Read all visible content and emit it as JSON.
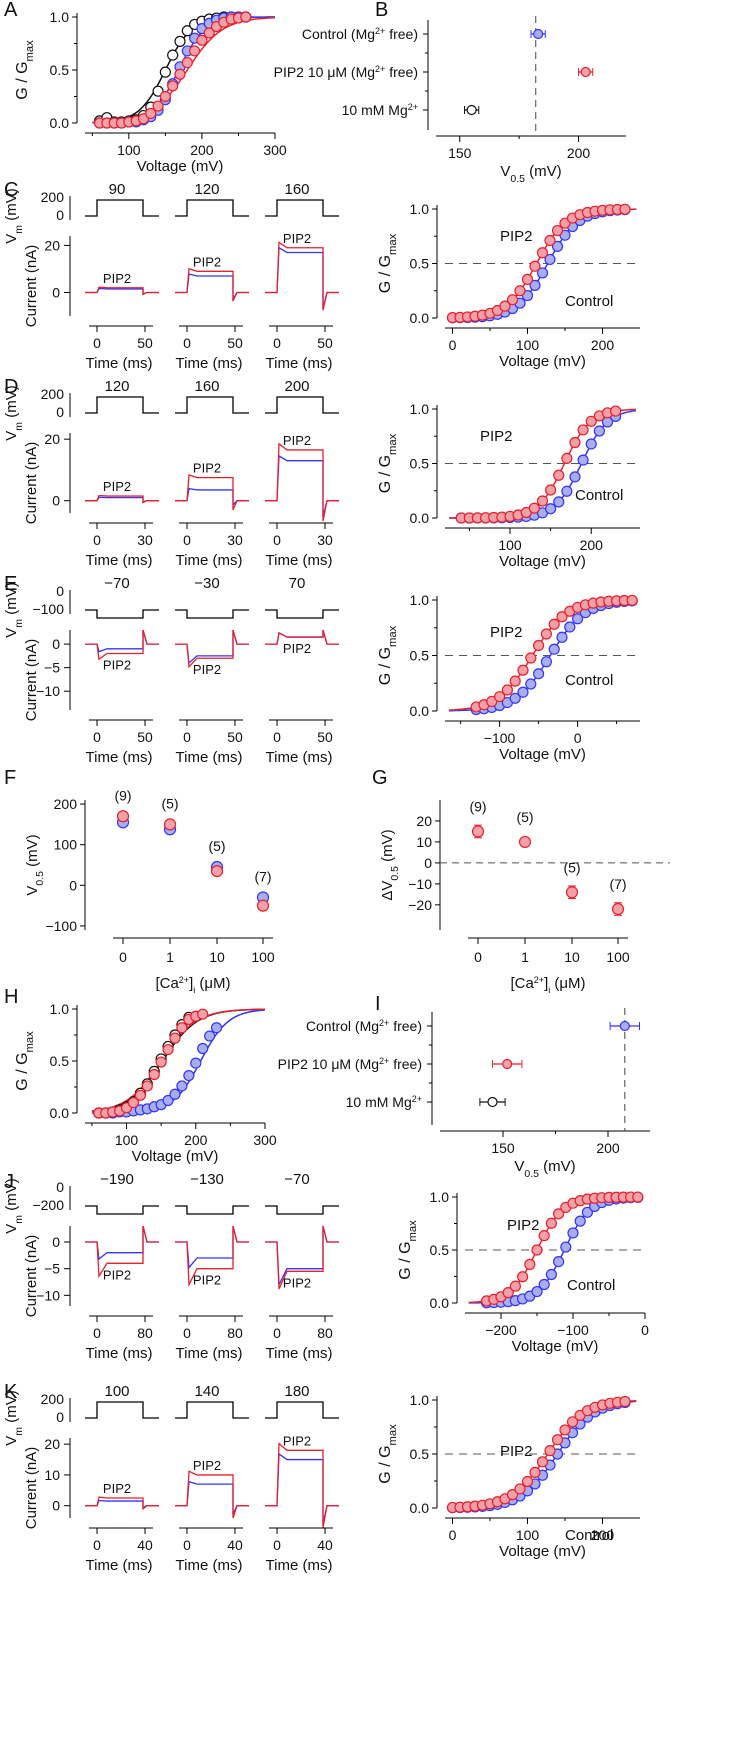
{
  "colors": {
    "control": "#3333ff",
    "pip2": "#e8202a",
    "mg": "#111111",
    "pip2_fill": "#f4a0a8",
    "control_fill": "#a9aef0"
  },
  "panel_letters": [
    "A",
    "B",
    "C",
    "D",
    "E",
    "F",
    "G",
    "H",
    "I",
    "J",
    "K"
  ],
  "common": {
    "g_label": "G / G",
    "g_sub": "max",
    "voltage_label": "Voltage (mV)",
    "time_label": "Time (ms)",
    "vm_label": "V",
    "vm_sub": "m",
    "vm_unit": " (mV)",
    "current_label": "Current (nA)",
    "pip2_label": "PIP2",
    "control_label": "Control",
    "v05_label": "V",
    "v05_sub": "0.5",
    "v05_unit": " (mV)"
  },
  "chart_data": [
    {
      "panel": "A",
      "type": "scatter",
      "xlabel": "Voltage (mV)",
      "ylabel": "G / Gmax",
      "xlim": [
        40,
        300
      ],
      "ylim": [
        0,
        1
      ],
      "xticks": [
        "100",
        "200",
        "300"
      ],
      "yticks": [
        "0.0",
        "0.5",
        "1.0"
      ],
      "series": [
        {
          "role": "mg",
          "x": [
            60,
            70,
            80,
            90,
            100,
            110,
            120,
            130,
            140,
            150,
            160,
            170,
            180,
            190,
            200,
            210,
            220,
            230,
            240,
            250,
            260
          ],
          "y": [
            0.02,
            0.05,
            0.01,
            0.01,
            0.02,
            0.03,
            0.07,
            0.15,
            0.3,
            0.48,
            0.64,
            0.77,
            0.87,
            0.93,
            0.96,
            0.98,
            0.99,
            1.0,
            1.0,
            1.0,
            1.0
          ]
        },
        {
          "role": "control",
          "x": [
            60,
            70,
            80,
            90,
            100,
            110,
            120,
            130,
            140,
            150,
            160,
            170,
            180,
            190,
            200,
            210,
            220,
            230,
            240,
            250,
            260
          ],
          "y": [
            0.0,
            0.0,
            0.0,
            0.0,
            0.01,
            0.01,
            0.03,
            0.06,
            0.12,
            0.22,
            0.37,
            0.53,
            0.68,
            0.8,
            0.89,
            0.94,
            0.97,
            0.99,
            1.0,
            1.0,
            1.0
          ]
        },
        {
          "role": "pip2",
          "x": [
            60,
            70,
            80,
            90,
            100,
            110,
            120,
            130,
            140,
            150,
            160,
            170,
            180,
            190,
            200,
            210,
            220,
            230,
            240,
            250,
            260
          ],
          "y": [
            0.0,
            0.0,
            0.0,
            0.0,
            0.01,
            0.02,
            0.04,
            0.09,
            0.16,
            0.25,
            0.35,
            0.46,
            0.57,
            0.68,
            0.78,
            0.85,
            0.91,
            0.95,
            0.98,
            0.99,
            1.0
          ]
        }
      ]
    },
    {
      "panel": "B",
      "type": "scatter",
      "xlabel": "V0.5 (mV)",
      "xlim": [
        140,
        220
      ],
      "xticks": [
        "150",
        "200"
      ],
      "categories": [
        "Control (Mg2+ free)",
        "PIP2 10 μM (Mg2+ free)",
        "10 mM Mg2+"
      ],
      "values": [
        183,
        203,
        155
      ],
      "errors": [
        3,
        3,
        3
      ],
      "dashed_x": 182
    },
    {
      "panel": "C",
      "type": "line",
      "steps": [
        "90",
        "120",
        "160"
      ],
      "time_ticks": [
        "0",
        "50"
      ],
      "vm_ticks": [
        "200",
        "0"
      ],
      "current_ticks": [
        "20",
        "0"
      ],
      "ylim": [
        -10,
        24
      ],
      "steady_control": [
        1.5,
        7,
        17
      ],
      "steady_pip2": [
        2,
        9,
        19
      ]
    },
    {
      "panel": "C",
      "type": "scatter",
      "xlabel": "Voltage (mV)",
      "ylabel": "G / Gmax",
      "xlim": [
        -10,
        250
      ],
      "ylim": [
        0,
        1
      ],
      "xticks": [
        "0",
        "100",
        "200"
      ],
      "yticks": [
        "0.0",
        "0.5",
        "1.0"
      ],
      "v50_pip2": 112,
      "v50_control": 127,
      "slope": 20,
      "x_points": [
        0,
        10,
        20,
        30,
        40,
        50,
        60,
        70,
        80,
        90,
        100,
        110,
        120,
        130,
        140,
        150,
        160,
        170,
        180,
        190,
        200,
        210,
        220,
        230
      ],
      "dashed_y": 0.5
    },
    {
      "panel": "D",
      "type": "line",
      "steps": [
        "120",
        "160",
        "200"
      ],
      "time_ticks": [
        "0",
        "30"
      ],
      "vm_ticks": [
        "200",
        "0"
      ],
      "current_ticks": [
        "20",
        "0"
      ],
      "ylim": [
        -4,
        22
      ],
      "steady_control": [
        1,
        3.5,
        13
      ],
      "steady_pip2": [
        1.5,
        7.5,
        16.5
      ]
    },
    {
      "panel": "D",
      "type": "scatter",
      "xlabel": "Voltage (mV)",
      "ylabel": "G / Gmax",
      "xlim": [
        20,
        260
      ],
      "ylim": [
        0,
        1
      ],
      "xticks": [
        "100",
        "200"
      ],
      "yticks": [
        "0.0",
        "0.5",
        "1.0"
      ],
      "v50_pip2": 167,
      "v50_control": 188,
      "slope": 16,
      "x_points": [
        40,
        50,
        60,
        70,
        80,
        90,
        100,
        110,
        120,
        130,
        140,
        150,
        160,
        170,
        180,
        190,
        200,
        210,
        220,
        230
      ],
      "dashed_y": 0.5
    },
    {
      "panel": "E",
      "type": "line",
      "steps": [
        "−70",
        "−30",
        "70"
      ],
      "time_ticks": [
        "0",
        "50"
      ],
      "vm_ticks": [
        "0",
        "−100"
      ],
      "current_ticks": [
        "0",
        "−5",
        "−10"
      ],
      "ylim": [
        -14,
        3
      ],
      "steady_control": [
        -1,
        -2.5,
        1.5
      ],
      "steady_pip2": [
        -2,
        -3,
        1.5
      ]
    },
    {
      "panel": "E",
      "type": "scatter",
      "xlabel": "Voltage (mV)",
      "ylabel": "G / Gmax",
      "xlim": [
        -170,
        80
      ],
      "ylim": [
        0,
        1
      ],
      "xticks": [
        "−100",
        "0"
      ],
      "yticks": [
        "0.0",
        "0.5",
        "1.0"
      ],
      "v50_pip2": -58,
      "v50_control": -35,
      "slope": 22,
      "x_points": [
        -130,
        -120,
        -110,
        -100,
        -90,
        -80,
        -70,
        -60,
        -50,
        -40,
        -30,
        -20,
        -10,
        0,
        10,
        20,
        30,
        40,
        50,
        60,
        70
      ],
      "dashed_y": 0.5
    },
    {
      "panel": "F",
      "type": "scatter",
      "xlabel": "[Ca2+]i (μM)",
      "ylabel": "V0.5 (mV)",
      "categories": [
        "0",
        "1",
        "10",
        "100"
      ],
      "ylim": [
        -110,
        210
      ],
      "yticks": [
        "200",
        "100",
        "0",
        "−100"
      ],
      "series": [
        {
          "role": "control",
          "values": [
            155,
            138,
            45,
            -30
          ]
        },
        {
          "role": "pip2",
          "values": [
            170,
            150,
            35,
            -50
          ]
        }
      ],
      "n_labels": [
        "(9)",
        "(5)",
        "(5)",
        "(7)"
      ]
    },
    {
      "panel": "G",
      "type": "scatter",
      "xlabel": "[Ca2+]i (μM)",
      "ylabel": "ΔV0.5 (mV)",
      "categories": [
        "0",
        "1",
        "10",
        "100"
      ],
      "ylim": [
        -32,
        30
      ],
      "yticks": [
        "20",
        "10",
        "0",
        "−10",
        "−20"
      ],
      "series": [
        {
          "role": "pip2",
          "values": [
            15,
            10,
            -14,
            -22
          ],
          "errors": [
            3,
            2,
            3,
            3
          ]
        }
      ],
      "n_labels": [
        "(9)",
        "(5)",
        "(5)",
        "(7)"
      ],
      "dashed_y": 0
    },
    {
      "panel": "H",
      "type": "scatter",
      "xlabel": "Voltage (mV)",
      "ylabel": "G / Gmax",
      "xlim": [
        40,
        300
      ],
      "ylim": [
        0,
        1
      ],
      "xticks": [
        "100",
        "200",
        "300"
      ],
      "yticks": [
        "0.0",
        "0.5",
        "1.0"
      ],
      "series": [
        {
          "role": "mg",
          "x": [
            60,
            70,
            80,
            90,
            100,
            110,
            120,
            130,
            140,
            150,
            160,
            170,
            180,
            190
          ],
          "y": [
            0.0,
            0.0,
            0.01,
            0.03,
            0.06,
            0.11,
            0.19,
            0.28,
            0.4,
            0.52,
            0.64,
            0.75,
            0.85,
            0.92
          ]
        },
        {
          "role": "control",
          "x": [
            60,
            70,
            80,
            90,
            100,
            110,
            120,
            130,
            140,
            150,
            160,
            170,
            180,
            190,
            200,
            210,
            220,
            230
          ],
          "y": [
            0.0,
            0.0,
            0.0,
            0.01,
            0.01,
            0.02,
            0.03,
            0.04,
            0.06,
            0.08,
            0.12,
            0.18,
            0.26,
            0.36,
            0.48,
            0.62,
            0.74,
            0.82
          ]
        },
        {
          "role": "pip2",
          "x": [
            60,
            70,
            80,
            90,
            100,
            110,
            120,
            130,
            140,
            150,
            160,
            170,
            180,
            190,
            200,
            210
          ],
          "y": [
            0.0,
            0.0,
            0.01,
            0.02,
            0.05,
            0.1,
            0.17,
            0.26,
            0.37,
            0.49,
            0.61,
            0.72,
            0.82,
            0.9,
            0.93,
            0.95
          ]
        }
      ]
    },
    {
      "panel": "I",
      "type": "scatter",
      "xlabel": "V0.5 (mV)",
      "xlim": [
        120,
        220
      ],
      "xticks": [
        "150",
        "200"
      ],
      "categories": [
        "Control (Mg2+ free)",
        "PIP2 10 μM (Mg2+ free)",
        "10 mM Mg2+"
      ],
      "values": [
        208,
        152,
        145
      ],
      "errors": [
        7,
        7,
        6
      ],
      "dashed_x": 208
    },
    {
      "panel": "J",
      "type": "line",
      "steps": [
        "−190",
        "−130",
        "−70"
      ],
      "time_ticks": [
        "0",
        "80"
      ],
      "vm_ticks": [
        "0",
        "−200"
      ],
      "current_ticks": [
        "0",
        "−5",
        "−10"
      ],
      "ylim": [
        -12,
        3
      ],
      "steady_control": [
        -2,
        -3,
        -5
      ],
      "steady_pip2": [
        -4,
        -5,
        -5.5
      ]
    },
    {
      "panel": "J",
      "type": "scatter",
      "xlabel": "Voltage (mV)",
      "ylabel": "G / Gmax",
      "xlim": [
        -250,
        0
      ],
      "ylim": [
        0,
        1
      ],
      "xticks": [
        "−200",
        "−100",
        "0"
      ],
      "yticks": [
        "0.0",
        "0.5",
        "1.0"
      ],
      "v50_pip2": -150,
      "v50_control": -112,
      "slope": 18,
      "x_points": [
        -220,
        -210,
        -200,
        -190,
        -180,
        -170,
        -160,
        -150,
        -140,
        -130,
        -120,
        -110,
        -100,
        -90,
        -80,
        -70,
        -60,
        -50,
        -40,
        -30,
        -20,
        -10
      ],
      "dashed_y": 0.5
    },
    {
      "panel": "K",
      "type": "line",
      "steps": [
        "100",
        "140",
        "180"
      ],
      "time_ticks": [
        "0",
        "40"
      ],
      "vm_ticks": [
        "200",
        "0"
      ],
      "current_ticks": [
        "20",
        "10",
        "0"
      ],
      "ylim": [
        -4,
        22
      ],
      "steady_control": [
        1.5,
        7,
        15
      ],
      "steady_pip2": [
        2.5,
        10,
        18
      ]
    },
    {
      "panel": "K",
      "type": "scatter",
      "xlabel": "Voltage (mV)",
      "ylabel": "G / Gmax",
      "xlim": [
        -10,
        250
      ],
      "ylim": [
        0,
        1
      ],
      "xticks": [
        "0",
        "100",
        "200"
      ],
      "yticks": [
        "0.0",
        "0.5",
        "1.0"
      ],
      "v50_pip2": 127,
      "v50_control": 140,
      "slope": 24,
      "x_points": [
        0,
        10,
        20,
        30,
        40,
        50,
        60,
        70,
        80,
        90,
        100,
        110,
        120,
        130,
        140,
        150,
        160,
        170,
        180,
        190,
        200,
        210,
        220,
        230
      ],
      "dashed_y": 0.5
    }
  ]
}
